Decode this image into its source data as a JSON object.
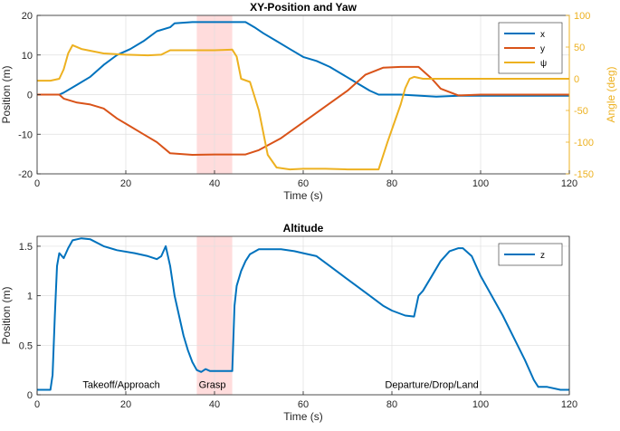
{
  "chart_data": [
    {
      "type": "line",
      "title": "XY-Position and Yaw",
      "xlabel": "Time (s)",
      "ylabel": "Position (m)",
      "ylabel_right": "Angle (deg)",
      "xlim": [
        0,
        120
      ],
      "ylim": [
        -20,
        20
      ],
      "ylim_right": [
        -150,
        100
      ],
      "xticks": [
        0,
        20,
        40,
        60,
        80,
        100,
        120
      ],
      "yticks": [
        -20,
        -10,
        0,
        10,
        20
      ],
      "yticks_right": [
        -150,
        -100,
        -50,
        0,
        50,
        100
      ],
      "grid": true,
      "legend_position": "top-right",
      "shaded_interval": [
        36,
        44
      ],
      "colors": {
        "x": "#0072BD",
        "y": "#D95319",
        "psi": "#EDB120",
        "shade": "#FFDCDC"
      },
      "series": [
        {
          "name": "x",
          "axis": "left",
          "points": [
            [
              0,
              0
            ],
            [
              5,
              0
            ],
            [
              6,
              0.5
            ],
            [
              9,
              2.5
            ],
            [
              12,
              4.5
            ],
            [
              15,
              7.5
            ],
            [
              18,
              10
            ],
            [
              21,
              11.5
            ],
            [
              24,
              13.5
            ],
            [
              27,
              16
            ],
            [
              30,
              17
            ],
            [
              31,
              18
            ],
            [
              35,
              18.3
            ],
            [
              40,
              18.3
            ],
            [
              44,
              18.3
            ],
            [
              47,
              18.3
            ],
            [
              49,
              17
            ],
            [
              51,
              15.5
            ],
            [
              54,
              13.5
            ],
            [
              57,
              11.5
            ],
            [
              60,
              9.5
            ],
            [
              63,
              8.5
            ],
            [
              66,
              7
            ],
            [
              69,
              5
            ],
            [
              72,
              3
            ],
            [
              75,
              1
            ],
            [
              77,
              0
            ],
            [
              82,
              0
            ],
            [
              90,
              -0.5
            ],
            [
              95,
              -0.3
            ],
            [
              100,
              -0.3
            ],
            [
              110,
              -0.3
            ],
            [
              120,
              -0.3
            ]
          ]
        },
        {
          "name": "y",
          "axis": "left",
          "points": [
            [
              0,
              0
            ],
            [
              5,
              0
            ],
            [
              6,
              -1
            ],
            [
              9,
              -2
            ],
            [
              12,
              -2.5
            ],
            [
              15,
              -3.5
            ],
            [
              18,
              -6
            ],
            [
              21,
              -8
            ],
            [
              24,
              -10
            ],
            [
              27,
              -12
            ],
            [
              30,
              -14.8
            ],
            [
              35,
              -15.2
            ],
            [
              40,
              -15.1
            ],
            [
              44,
              -15.1
            ],
            [
              47,
              -15.1
            ],
            [
              50,
              -14
            ],
            [
              55,
              -11
            ],
            [
              60,
              -7
            ],
            [
              65,
              -3
            ],
            [
              70,
              1
            ],
            [
              74,
              5
            ],
            [
              78,
              6.8
            ],
            [
              82,
              7
            ],
            [
              86,
              7
            ],
            [
              89,
              4
            ],
            [
              91,
              1.5
            ],
            [
              95,
              -0.2
            ],
            [
              100,
              0
            ],
            [
              110,
              0
            ],
            [
              120,
              0
            ]
          ]
        },
        {
          "name": "ψ",
          "axis": "right",
          "points": [
            [
              0,
              -3
            ],
            [
              3,
              -3
            ],
            [
              5,
              0
            ],
            [
              6,
              15
            ],
            [
              7,
              40
            ],
            [
              8,
              53
            ],
            [
              10,
              47
            ],
            [
              15,
              40
            ],
            [
              20,
              38
            ],
            [
              25,
              37
            ],
            [
              28,
              38
            ],
            [
              30,
              45
            ],
            [
              35,
              45
            ],
            [
              40,
              45
            ],
            [
              44,
              46
            ],
            [
              45,
              35
            ],
            [
              46,
              0
            ],
            [
              48,
              -5
            ],
            [
              50,
              -50
            ],
            [
              52,
              -120
            ],
            [
              54,
              -140
            ],
            [
              57,
              -143
            ],
            [
              60,
              -142
            ],
            [
              65,
              -142
            ],
            [
              70,
              -143
            ],
            [
              75,
              -143
            ],
            [
              77,
              -143
            ],
            [
              79,
              -100
            ],
            [
              81,
              -60
            ],
            [
              82,
              -40
            ],
            [
              83,
              -15
            ],
            [
              84,
              0
            ],
            [
              85,
              3
            ],
            [
              87,
              0
            ],
            [
              90,
              0
            ],
            [
              95,
              0
            ],
            [
              100,
              0
            ],
            [
              110,
              0
            ],
            [
              120,
              0
            ]
          ]
        }
      ]
    },
    {
      "type": "line",
      "title": "Altitude",
      "xlabel": "Time (s)",
      "ylabel": "Position (m)",
      "xlim": [
        0,
        120
      ],
      "ylim": [
        0,
        1.6
      ],
      "xticks": [
        0,
        20,
        40,
        60,
        80,
        100,
        120
      ],
      "yticks": [
        0,
        0.5,
        1,
        1.5
      ],
      "ytick_labels": [
        "0",
        "0.5",
        "1",
        "1.5"
      ],
      "grid": true,
      "legend_position": "top-right",
      "shaded_interval": [
        36,
        44
      ],
      "colors": {
        "z": "#0072BD",
        "shade": "#FFDCDC"
      },
      "series": [
        {
          "name": "z",
          "points": [
            [
              0,
              0.05
            ],
            [
              3,
              0.05
            ],
            [
              3.5,
              0.2
            ],
            [
              4,
              0.8
            ],
            [
              4.5,
              1.3
            ],
            [
              5,
              1.43
            ],
            [
              6,
              1.38
            ],
            [
              7,
              1.48
            ],
            [
              8,
              1.56
            ],
            [
              10,
              1.58
            ],
            [
              12,
              1.57
            ],
            [
              15,
              1.5
            ],
            [
              18,
              1.46
            ],
            [
              22,
              1.43
            ],
            [
              25,
              1.4
            ],
            [
              27,
              1.37
            ],
            [
              28,
              1.4
            ],
            [
              29,
              1.5
            ],
            [
              30,
              1.3
            ],
            [
              31,
              1.0
            ],
            [
              32,
              0.8
            ],
            [
              33,
              0.6
            ],
            [
              34,
              0.45
            ],
            [
              35,
              0.33
            ],
            [
              36,
              0.25
            ],
            [
              37,
              0.23
            ],
            [
              38,
              0.26
            ],
            [
              39,
              0.24
            ],
            [
              40,
              0.24
            ],
            [
              43,
              0.24
            ],
            [
              44,
              0.24
            ],
            [
              44.5,
              0.9
            ],
            [
              45,
              1.1
            ],
            [
              46,
              1.25
            ],
            [
              47,
              1.35
            ],
            [
              48,
              1.42
            ],
            [
              50,
              1.47
            ],
            [
              55,
              1.47
            ],
            [
              58,
              1.45
            ],
            [
              60,
              1.43
            ],
            [
              63,
              1.4
            ],
            [
              66,
              1.3
            ],
            [
              69,
              1.2
            ],
            [
              72,
              1.1
            ],
            [
              75,
              1.0
            ],
            [
              78,
              0.9
            ],
            [
              80,
              0.85
            ],
            [
              83,
              0.8
            ],
            [
              85,
              0.79
            ],
            [
              86,
              1.0
            ],
            [
              87,
              1.05
            ],
            [
              89,
              1.2
            ],
            [
              91,
              1.35
            ],
            [
              93,
              1.45
            ],
            [
              95,
              1.48
            ],
            [
              96,
              1.48
            ],
            [
              98,
              1.4
            ],
            [
              100,
              1.2
            ],
            [
              105,
              0.8
            ],
            [
              110,
              0.35
            ],
            [
              112,
              0.15
            ],
            [
              113,
              0.08
            ],
            [
              115,
              0.08
            ],
            [
              118,
              0.05
            ],
            [
              120,
              0.05
            ]
          ]
        }
      ],
      "annotations": [
        {
          "text": "Takeoff/Approach",
          "x": 19,
          "y": 0.05
        },
        {
          "text": "Grasp",
          "x": 39.5,
          "y": 0.05
        },
        {
          "text": "Departure/Drop/Land",
          "x": 89,
          "y": 0.05
        }
      ]
    }
  ]
}
